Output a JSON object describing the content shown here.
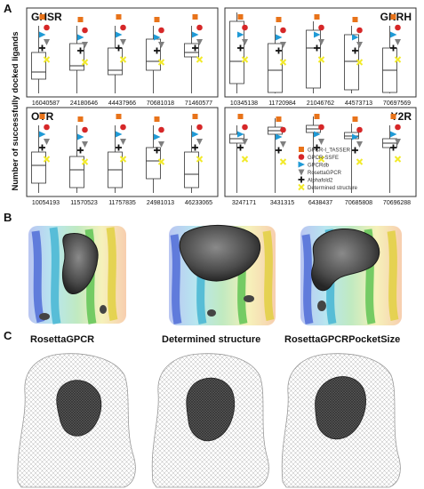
{
  "figure": {
    "panels": {
      "a": "A",
      "b": "B",
      "c": "C"
    },
    "ylabel": "Number of successfully docked ligands",
    "legend": [
      {
        "label": "GPCR-I_TASSER",
        "color": "#e8731a",
        "marker": "square"
      },
      {
        "label": "GPCR-SSFE",
        "color": "#d62728",
        "marker": "circle"
      },
      {
        "label": "GPCRdb",
        "color": "#1f9ad6",
        "marker": "triangle-right"
      },
      {
        "label": "RosettaGPCR",
        "color": "#7f7f7f",
        "marker": "triangle-down"
      },
      {
        "label": "Alphafold2",
        "color": "#111111",
        "marker": "plus"
      },
      {
        "label": "Determined structure",
        "color": "#f2ea2a",
        "marker": "x"
      }
    ],
    "mesh_titles": [
      "RosettaGPCR",
      "Determined structure",
      "RosettaGPCRPocketSize"
    ]
  },
  "chart_data": [
    {
      "type": "box",
      "title": "GHSR",
      "categories": [
        "16040587",
        "24180646",
        "44437966",
        "70681018",
        "71460577"
      ]
    },
    {
      "type": "box",
      "title": "GNRH",
      "categories": [
        "10345138",
        "11720984",
        "21046762",
        "44573713",
        "70697569"
      ]
    },
    {
      "type": "box",
      "title": "OTR",
      "categories": [
        "10054193",
        "11570523",
        "11757835",
        "24981013",
        "46233065"
      ]
    },
    {
      "type": "box",
      "title": "Y2R",
      "categories": [
        "3247171",
        "3431315",
        "6438437",
        "70685808",
        "70696288"
      ]
    }
  ]
}
